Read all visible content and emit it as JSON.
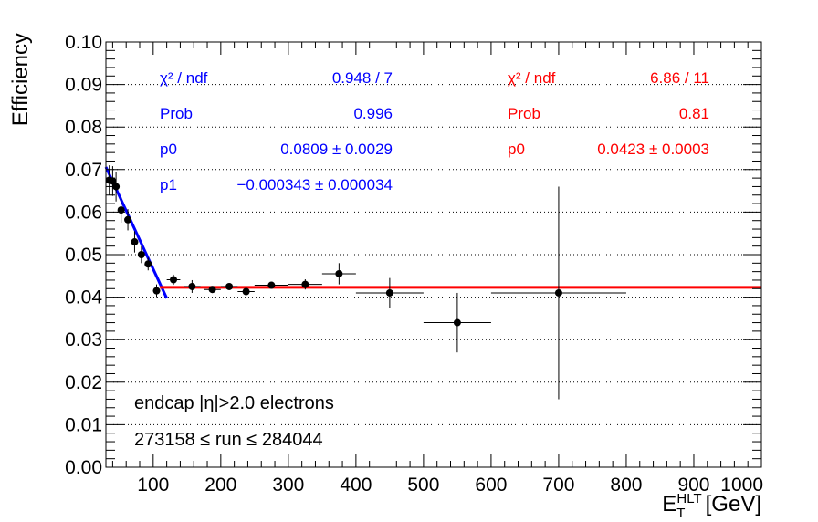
{
  "chart_data": {
    "type": "scatter",
    "title": "",
    "xlabel": "E_T^HLT [GeV]",
    "xlabel_parts": {
      "main": "E",
      "sub": "T",
      "sup": "HLT",
      "unit": "[GeV]"
    },
    "ylabel": "Efficiency",
    "xlim": [
      30,
      1000
    ],
    "ylim": [
      0,
      0.1
    ],
    "x_ticks": [
      100,
      200,
      300,
      400,
      500,
      600,
      700,
      800,
      900,
      1000
    ],
    "x_tick_labels": [
      "100",
      "200",
      "300",
      "400",
      "500",
      "600",
      "700",
      "800",
      "900",
      "1000"
    ],
    "y_ticks": [
      0,
      0.01,
      0.02,
      0.03,
      0.04,
      0.05,
      0.06,
      0.07,
      0.08,
      0.09,
      0.1
    ],
    "y_tick_labels": [
      "0.00",
      "0.01",
      "0.02",
      "0.03",
      "0.04",
      "0.05",
      "0.06",
      "0.07",
      "0.08",
      "0.09",
      "0.10"
    ],
    "grid": {
      "x": false,
      "y": true,
      "style": "dotted"
    },
    "points": [
      {
        "x": 35,
        "y": 0.0675,
        "xerr": 2.5,
        "yerr": 0.0035
      },
      {
        "x": 40,
        "y": 0.0673,
        "xerr": 2.5,
        "yerr": 0.0035
      },
      {
        "x": 45,
        "y": 0.066,
        "xerr": 2.5,
        "yerr": 0.0035
      },
      {
        "x": 52.5,
        "y": 0.0605,
        "xerr": 5,
        "yerr": 0.003
      },
      {
        "x": 62.5,
        "y": 0.0582,
        "xerr": 5,
        "yerr": 0.0025
      },
      {
        "x": 72.5,
        "y": 0.053,
        "xerr": 5,
        "yerr": 0.0025
      },
      {
        "x": 82.5,
        "y": 0.05,
        "xerr": 5,
        "yerr": 0.002
      },
      {
        "x": 92.5,
        "y": 0.0478,
        "xerr": 5,
        "yerr": 0.0015
      },
      {
        "x": 105,
        "y": 0.0415,
        "xerr": 5,
        "yerr": 0.0015
      },
      {
        "x": 130,
        "y": 0.0441,
        "xerr": 10,
        "yerr": 0.0012
      },
      {
        "x": 157.5,
        "y": 0.0425,
        "xerr": 12.5,
        "yerr": 0.0015
      },
      {
        "x": 187.5,
        "y": 0.0418,
        "xerr": 12.5,
        "yerr": 0.0005
      },
      {
        "x": 212.5,
        "y": 0.0425,
        "xerr": 12.5,
        "yerr": 0.0005
      },
      {
        "x": 237.5,
        "y": 0.0413,
        "xerr": 12.5,
        "yerr": 0.0005
      },
      {
        "x": 275,
        "y": 0.0428,
        "xerr": 25,
        "yerr": 0.0005
      },
      {
        "x": 325,
        "y": 0.043,
        "xerr": 25,
        "yerr": 0.0012
      },
      {
        "x": 375,
        "y": 0.0455,
        "xerr": 25,
        "yerr": 0.0025
      },
      {
        "x": 450,
        "y": 0.041,
        "xerr": 50,
        "yerr": 0.0035
      },
      {
        "x": 550,
        "y": 0.034,
        "xerr": 50,
        "yerr": 0.007
      },
      {
        "x": 700,
        "y": 0.041,
        "xerr": 100,
        "yerr": 0.025
      }
    ],
    "fits": [
      {
        "name": "linear",
        "color": "#0000ff",
        "p0": 0.0809,
        "p1": -0.000343,
        "x_range": [
          30,
          120
        ],
        "width": 3
      },
      {
        "name": "constant",
        "color": "#ff0000",
        "p0": 0.0423,
        "x_range": [
          110,
          1000
        ],
        "width": 3
      }
    ],
    "stat_boxes": [
      {
        "color": "#0000ff",
        "rows": [
          {
            "label": "χ² / ndf",
            "value": "0.948 / 7"
          },
          {
            "label": "Prob",
            "value": "0.996"
          },
          {
            "label": "p0",
            "value": "0.0809 ± 0.0029"
          },
          {
            "label": "p1",
            "value": "−0.000343 ± 0.000034"
          }
        ]
      },
      {
        "color": "#ff0000",
        "rows": [
          {
            "label": "χ² / ndf",
            "value": "6.86 / 11"
          },
          {
            "label": "Prob",
            "value": "0.81"
          },
          {
            "label": "p0",
            "value": "0.0423 ± 0.0003"
          }
        ]
      }
    ],
    "annotations": [
      "endcap |η|>2.0 electrons",
      "273158 ≤ run ≤ 284044"
    ]
  }
}
